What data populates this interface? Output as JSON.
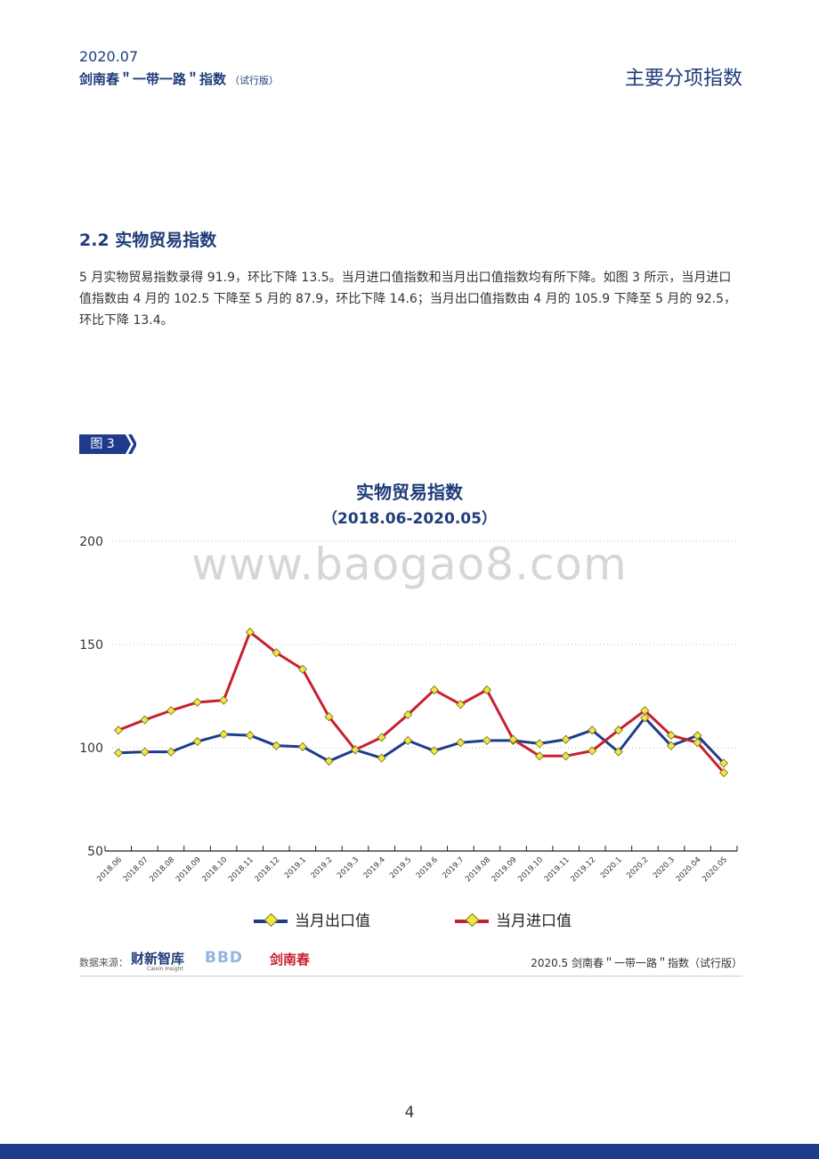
{
  "header": {
    "date": "2020.07",
    "title": "剑南春＂一带一路＂指数",
    "title_suffix": "（试行版）",
    "section_name": "主要分项指数"
  },
  "section": {
    "title": "2.2 实物贸易指数",
    "paragraph": "5 月实物贸易指数录得 91.9，环比下降 13.5。当月进口值指数和当月出口值指数均有所下降。如图 3 所示，当月进口值指数由 4 月的 102.5 下降至 5 月的 87.9，环比下降 14.6；当月出口值指数由 4 月的 105.9 下降至 5 月的 92.5，环比下降 13.4。"
  },
  "figure": {
    "tag": "图 3"
  },
  "watermark": "www.baogao8.com",
  "chart_data": {
    "type": "line",
    "title": "实物贸易指数",
    "subtitle": "（2018.06-2020.05）",
    "categories": [
      "2018.06",
      "2018.07",
      "2018.08",
      "2018.09",
      "2018.10",
      "2018.11",
      "2018.12",
      "2019.1",
      "2019.2",
      "2019.3",
      "2019.4",
      "2019.5",
      "2019.6",
      "2019.7",
      "2019.08",
      "2019.09",
      "2019.10",
      "2019.11",
      "2019.12",
      "2020.1",
      "2020.2",
      "2020.3",
      "2020.04",
      "2020.05"
    ],
    "series": [
      {
        "name": "当月出口值",
        "color": "#1f3c8c",
        "values": [
          97.5,
          98,
          98,
          103,
          106.5,
          106,
          101,
          100.5,
          93.5,
          99,
          95,
          103.5,
          98.5,
          102.5,
          103.5,
          103.5,
          102,
          104,
          108.5,
          98,
          114.5,
          101,
          105.9,
          92.5
        ]
      },
      {
        "name": "当月进口值",
        "color": "#c8202f",
        "values": [
          108.5,
          113.5,
          118,
          122,
          123,
          156,
          146,
          138,
          115,
          99,
          105,
          116,
          128,
          121,
          128,
          104,
          96,
          96,
          98.5,
          108.5,
          118,
          106,
          102.5,
          87.9
        ]
      }
    ],
    "ylim": [
      50,
      200
    ],
    "yticks": [
      "200",
      "150",
      "100",
      "50"
    ],
    "grid": true,
    "legend": "bottom",
    "marker_color": "#f0e641"
  },
  "source": {
    "label": "数据来源：",
    "logo_caixin": "财新智库",
    "logo_caixin_sub": "Caixin Insight",
    "logo_bbd": "BBD",
    "logo_jnc": "剑南春",
    "right_text": "2020.5  剑南春＂一带一路＂指数（试行版）"
  },
  "page_number": "4"
}
